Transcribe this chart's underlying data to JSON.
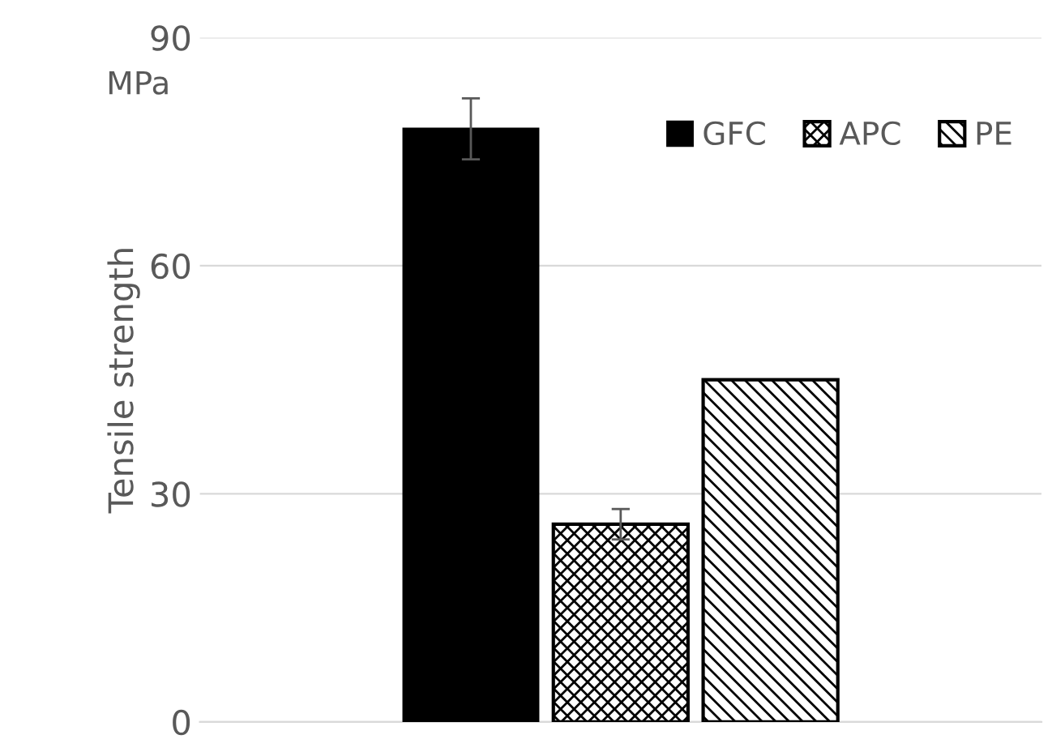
{
  "chart_data": {
    "type": "bar",
    "categories": [
      null
    ],
    "ylabel": "Tensile strength",
    "annotations": [
      "MPa"
    ],
    "series": [
      {
        "name": "GFC",
        "color": "#000000",
        "values": [
          78
        ],
        "errors": [
          4
        ]
      },
      {
        "name": "APC",
        "color": "#000000",
        "values": [
          26
        ],
        "errors": [
          2
        ]
      },
      {
        "name": "PE",
        "color": "#000000",
        "values": [
          45
        ]
      }
    ],
    "ylim": [
      0,
      90
    ],
    "yticks": [
      0,
      30,
      60,
      90
    ],
    "grid": "y",
    "legend": "top right"
  }
}
